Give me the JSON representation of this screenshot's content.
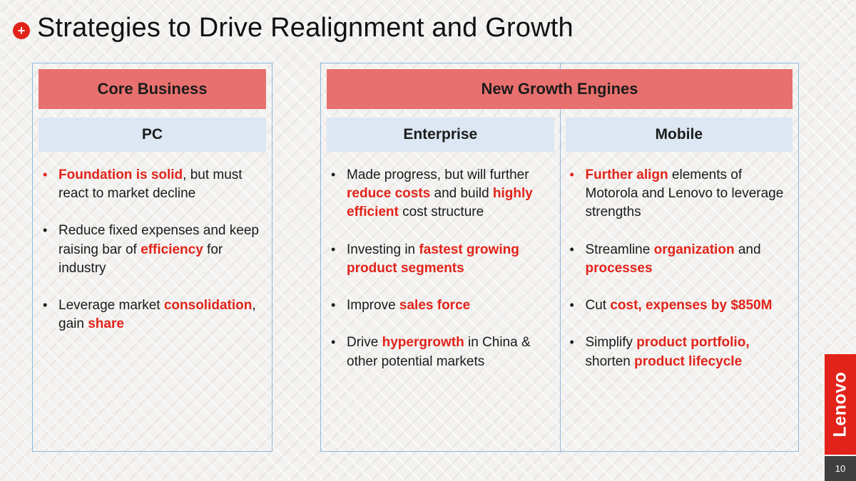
{
  "glyphs": {
    "bullet": "•",
    "plus": "+"
  },
  "colors": {
    "accent_red": "#E2231A",
    "header_salmon": "#E8706E",
    "subheader_blue": "#DCE7F3",
    "panel_border": "#8FB8DC"
  },
  "slide": {
    "title": "Strategies to Drive Realignment and Growth",
    "page_number": "10",
    "logo_text": "Lenovo"
  },
  "panels": {
    "core": {
      "header": "Core Business",
      "columns": [
        {
          "subheader": "PC",
          "bullets": [
            {
              "marker": "red",
              "runs": [
                {
                  "t": "Foundation is solid",
                  "red": true
                },
                {
                  "t": ", but must react to market decline",
                  "red": false
                }
              ]
            },
            {
              "marker": "black",
              "runs": [
                {
                  "t": "Reduce fixed expenses and keep raising bar of ",
                  "red": false
                },
                {
                  "t": "efficiency",
                  "red": true
                },
                {
                  "t": " for industry",
                  "red": false
                }
              ]
            },
            {
              "marker": "black",
              "runs": [
                {
                  "t": "Leverage market ",
                  "red": false
                },
                {
                  "t": "consolidation",
                  "red": true
                },
                {
                  "t": ", gain ",
                  "red": false
                },
                {
                  "t": "share",
                  "red": true
                }
              ]
            }
          ]
        }
      ]
    },
    "growth": {
      "header": "New Growth Engines",
      "columns": [
        {
          "subheader": "Enterprise",
          "bullets": [
            {
              "marker": "black",
              "runs": [
                {
                  "t": "Made progress, but will further ",
                  "red": false
                },
                {
                  "t": "reduce costs",
                  "red": true
                },
                {
                  "t": " and build ",
                  "red": false
                },
                {
                  "t": "highly efficient",
                  "red": true
                },
                {
                  "t": " cost structure",
                  "red": false
                }
              ]
            },
            {
              "marker": "black",
              "runs": [
                {
                  "t": "Investing in ",
                  "red": false
                },
                {
                  "t": "fastest growing product segments",
                  "red": true
                }
              ]
            },
            {
              "marker": "black",
              "runs": [
                {
                  "t": "Improve ",
                  "red": false
                },
                {
                  "t": "sales force",
                  "red": true
                }
              ]
            },
            {
              "marker": "black",
              "runs": [
                {
                  "t": "Drive ",
                  "red": false
                },
                {
                  "t": "hypergrowth",
                  "red": true
                },
                {
                  "t": " in China & other potential markets",
                  "red": false
                }
              ]
            }
          ]
        },
        {
          "subheader": "Mobile",
          "bullets": [
            {
              "marker": "red",
              "runs": [
                {
                  "t": "Further align",
                  "red": true
                },
                {
                  "t": " elements of Motorola and Lenovo to leverage strengths",
                  "red": false
                }
              ]
            },
            {
              "marker": "black",
              "runs": [
                {
                  "t": "Streamline ",
                  "red": false
                },
                {
                  "t": "organization",
                  "red": true
                },
                {
                  "t": " and ",
                  "red": false
                },
                {
                  "t": "processes",
                  "red": true
                }
              ]
            },
            {
              "marker": "black",
              "runs": [
                {
                  "t": "Cut ",
                  "red": false
                },
                {
                  "t": "cost, expenses by $850M",
                  "red": true
                }
              ]
            },
            {
              "marker": "black",
              "runs": [
                {
                  "t": "Simplify ",
                  "red": false
                },
                {
                  "t": "product portfolio,",
                  "red": true
                },
                {
                  "t": " shorten ",
                  "red": false
                },
                {
                  "t": "product lifecycle",
                  "red": true
                }
              ]
            }
          ]
        }
      ]
    }
  }
}
